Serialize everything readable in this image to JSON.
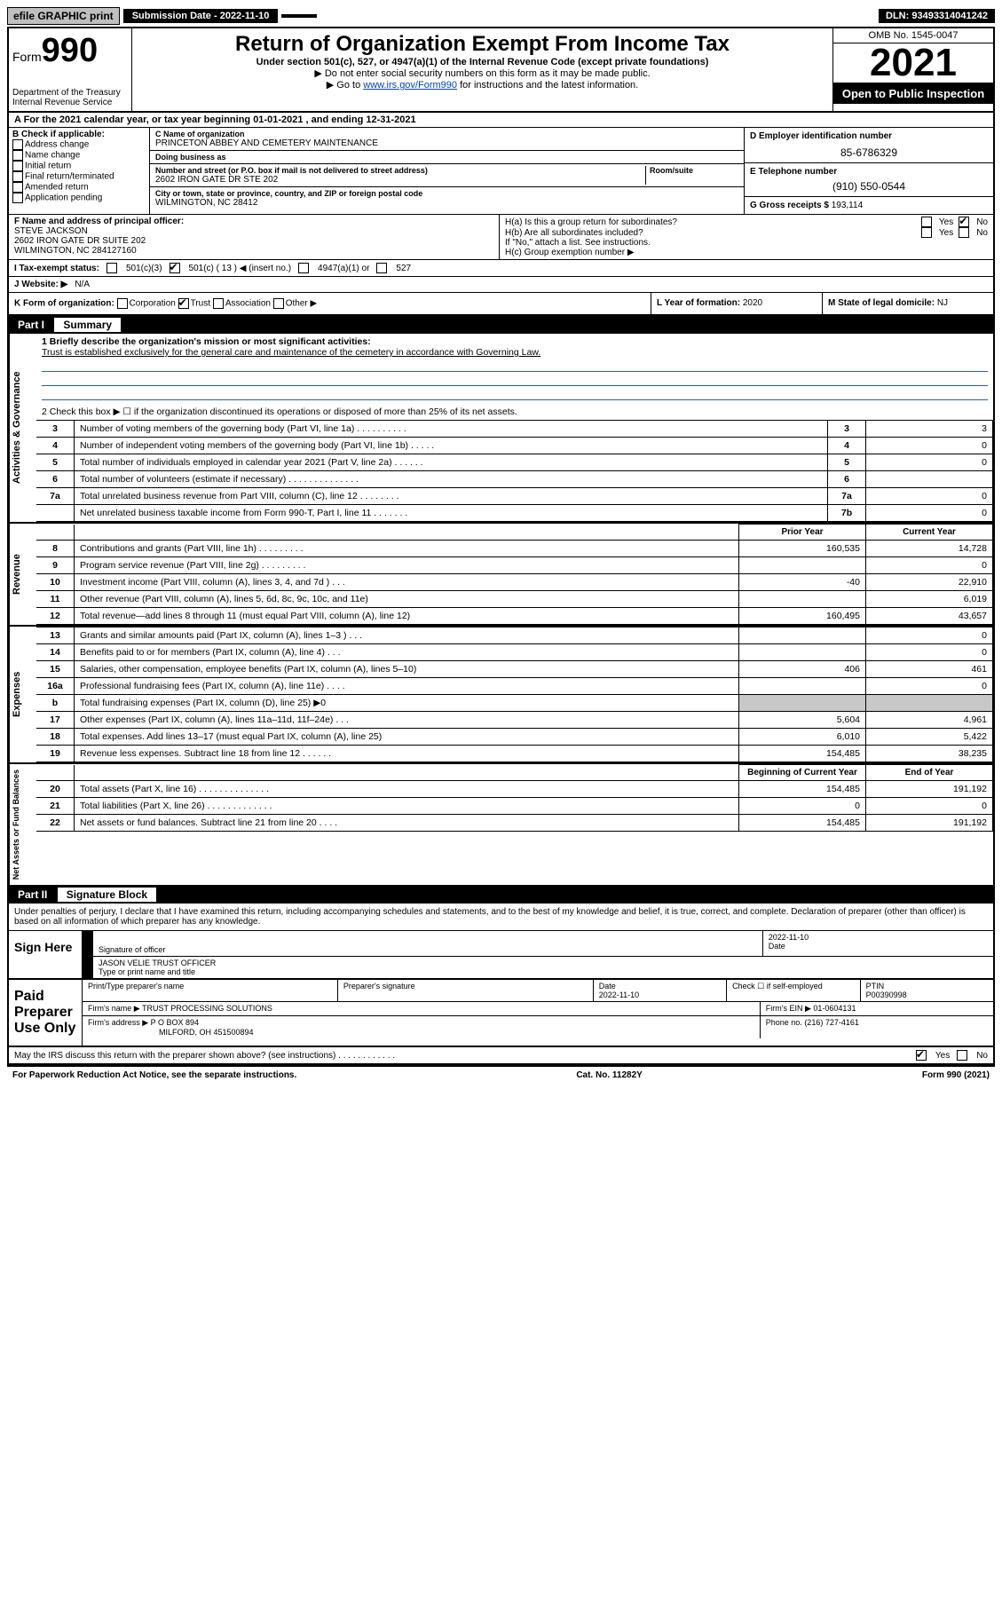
{
  "topbar": {
    "efile": "efile GRAPHIC print",
    "submission_label": "Submission Date - 2022-11-10",
    "dln": "DLN: 93493314041242"
  },
  "header": {
    "form_word": "Form",
    "form_num": "990",
    "title": "Return of Organization Exempt From Income Tax",
    "subtitle": "Under section 501(c), 527, or 4947(a)(1) of the Internal Revenue Code (except private foundations)",
    "instr1": "▶ Do not enter social security numbers on this form as it may be made public.",
    "instr2_pre": "▶ Go to ",
    "instr2_link": "www.irs.gov/Form990",
    "instr2_post": " for instructions and the latest information.",
    "dept": "Department of the Treasury",
    "irs": "Internal Revenue Service",
    "omb": "OMB No. 1545-0047",
    "year": "2021",
    "open": "Open to Public Inspection"
  },
  "rowA": "A For the 2021 calendar year, or tax year beginning 01-01-2021  , and ending 12-31-2021",
  "colB": {
    "label": "B Check if applicable:",
    "items": [
      "Address change",
      "Name change",
      "Initial return",
      "Final return/terminated",
      "Amended return",
      "Application pending"
    ]
  },
  "colC": {
    "name_label": "C Name of organization",
    "name": "PRINCETON ABBEY AND CEMETERY MAINTENANCE",
    "dba_label": "Doing business as",
    "dba": "",
    "street_label": "Number and street (or P.O. box if mail is not delivered to street address)",
    "room_label": "Room/suite",
    "street": "2602 IRON GATE DR STE 202",
    "city_label": "City or town, state or province, country, and ZIP or foreign postal code",
    "city": "WILMINGTON, NC  28412"
  },
  "colD": {
    "ein_label": "D Employer identification number",
    "ein": "85-6786329",
    "phone_label": "E Telephone number",
    "phone": "(910) 550-0544",
    "gross_label": "G Gross receipts $",
    "gross": "193,114"
  },
  "rowF": {
    "label": "F  Name and address of principal officer:",
    "name": "STEVE JACKSON",
    "addr1": "2602 IRON GATE DR SUITE 202",
    "addr2": "WILMINGTON, NC  284127160",
    "ha": "H(a)  Is this a group return for subordinates?",
    "ha_yes": "Yes",
    "ha_no": "No",
    "hb": "H(b)  Are all subordinates included?",
    "hb_yes": "Yes",
    "hb_no": "No",
    "hb_note": "If \"No,\" attach a list. See instructions.",
    "hc": "H(c)  Group exemption number ▶"
  },
  "rowI": {
    "label": "I   Tax-exempt status:",
    "opts": [
      "501(c)(3)",
      "501(c) ( 13 ) ◀ (insert no.)",
      "4947(a)(1) or",
      "527"
    ]
  },
  "rowJ": {
    "label": "J   Website: ▶",
    "val": "N/A"
  },
  "rowK": {
    "label": "K Form of organization:",
    "opts": [
      "Corporation",
      "Trust",
      "Association",
      "Other ▶"
    ],
    "l_label": "L Year of formation:",
    "l_val": "2020",
    "m_label": "M State of legal domicile:",
    "m_val": "NJ"
  },
  "part1": {
    "header": "Part I",
    "title": "Summary",
    "q1": "1   Briefly describe the organization's mission or most significant activities:",
    "mission": "Trust is established exclusively for the general care and maintenance of the cemetery in accordance with Governing Law.",
    "q2": "2   Check this box ▶ ☐ if the organization discontinued its operations or disposed of more than 25% of its net assets.",
    "rows_gov": [
      {
        "n": "3",
        "d": "Number of voting members of the governing body (Part VI, line 1a)  .   .   .   .   .   .   .   .   .   .",
        "k": "3",
        "v": "3"
      },
      {
        "n": "4",
        "d": "Number of independent voting members of the governing body (Part VI, line 1b)  .   .   .   .   .",
        "k": "4",
        "v": "0"
      },
      {
        "n": "5",
        "d": "Total number of individuals employed in calendar year 2021 (Part V, line 2a)  .   .   .   .   .   .",
        "k": "5",
        "v": "0"
      },
      {
        "n": "6",
        "d": "Total number of volunteers (estimate if necessary)  .   .   .   .   .   .   .   .   .   .   .   .   .   .",
        "k": "6",
        "v": ""
      },
      {
        "n": "7a",
        "d": "Total unrelated business revenue from Part VIII, column (C), line 12  .   .   .   .   .   .   .   .",
        "k": "7a",
        "v": "0"
      },
      {
        "n": "",
        "d": "Net unrelated business taxable income from Form 990-T, Part I, line 11  .   .   .   .   .   .   .",
        "k": "7b",
        "v": "0"
      }
    ],
    "col_prior": "Prior Year",
    "col_curr": "Current Year",
    "rows_rev": [
      {
        "n": "8",
        "d": "Contributions and grants (Part VIII, line 1h)  .   .   .   .   .   .   .   .   .",
        "p": "160,535",
        "c": "14,728"
      },
      {
        "n": "9",
        "d": "Program service revenue (Part VIII, line 2g)  .   .   .   .   .   .   .   .   .",
        "p": "",
        "c": "0"
      },
      {
        "n": "10",
        "d": "Investment income (Part VIII, column (A), lines 3, 4, and 7d )  .   .   .",
        "p": "-40",
        "c": "22,910"
      },
      {
        "n": "11",
        "d": "Other revenue (Part VIII, column (A), lines 5, 6d, 8c, 9c, 10c, and 11e)",
        "p": "",
        "c": "6,019"
      },
      {
        "n": "12",
        "d": "Total revenue—add lines 8 through 11 (must equal Part VIII, column (A), line 12)",
        "p": "160,495",
        "c": "43,657"
      }
    ],
    "rows_exp": [
      {
        "n": "13",
        "d": "Grants and similar amounts paid (Part IX, column (A), lines 1–3 )  .   .   .",
        "p": "",
        "c": "0"
      },
      {
        "n": "14",
        "d": "Benefits paid to or for members (Part IX, column (A), line 4)  .   .   .",
        "p": "",
        "c": "0"
      },
      {
        "n": "15",
        "d": "Salaries, other compensation, employee benefits (Part IX, column (A), lines 5–10)",
        "p": "406",
        "c": "461"
      },
      {
        "n": "16a",
        "d": "Professional fundraising fees (Part IX, column (A), line 11e)  .   .   .   .",
        "p": "",
        "c": "0"
      },
      {
        "n": "b",
        "d": "Total fundraising expenses (Part IX, column (D), line 25) ▶0",
        "p": "GRAY",
        "c": "GRAY"
      },
      {
        "n": "17",
        "d": "Other expenses (Part IX, column (A), lines 11a–11d, 11f–24e)  .   .   .",
        "p": "5,604",
        "c": "4,961"
      },
      {
        "n": "18",
        "d": "Total expenses. Add lines 13–17 (must equal Part IX, column (A), line 25)",
        "p": "6,010",
        "c": "5,422"
      },
      {
        "n": "19",
        "d": "Revenue less expenses. Subtract line 18 from line 12  .   .   .   .   .   .",
        "p": "154,485",
        "c": "38,235"
      }
    ],
    "col_beg": "Beginning of Current Year",
    "col_end": "End of Year",
    "rows_net": [
      {
        "n": "20",
        "d": "Total assets (Part X, line 16)  .   .   .   .   .   .   .   .   .   .   .   .   .   .",
        "p": "154,485",
        "c": "191,192"
      },
      {
        "n": "21",
        "d": "Total liabilities (Part X, line 26)  .   .   .   .   .   .   .   .   .   .   .   .   .",
        "p": "0",
        "c": "0"
      },
      {
        "n": "22",
        "d": "Net assets or fund balances. Subtract line 21 from line 20  .   .   .   .",
        "p": "154,485",
        "c": "191,192"
      }
    ]
  },
  "part2": {
    "header": "Part II",
    "title": "Signature Block",
    "decl": "Under penalties of perjury, I declare that I have examined this return, including accompanying schedules and statements, and to the best of my knowledge and belief, it is true, correct, and complete. Declaration of preparer (other than officer) is based on all information of which preparer has any knowledge."
  },
  "sign": {
    "here": "Sign Here",
    "sig_officer": "Signature of officer",
    "date": "Date",
    "date_val": "2022-11-10",
    "name": "JASON VELIE TRUST OFFICER",
    "name_label": "Type or print name and title"
  },
  "paid": {
    "label": "Paid Preparer Use Only",
    "c1": "Print/Type preparer's name",
    "c2": "Preparer's signature",
    "c3": "Date",
    "c3v": "2022-11-10",
    "c4": "Check ☐ if self-employed",
    "c5": "PTIN",
    "c5v": "P00390998",
    "firm_label": "Firm's name   ▶",
    "firm": "TRUST PROCESSING SOLUTIONS",
    "ein_label": "Firm's EIN ▶",
    "ein": "01-0604131",
    "addr_label": "Firm's address ▶",
    "addr1": "P O BOX 894",
    "addr2": "MILFORD, OH  451500894",
    "phone_label": "Phone no.",
    "phone": "(216) 727-4161"
  },
  "may_irs": "May the IRS discuss this return with the preparer shown above? (see instructions)  .   .   .   .   .   .   .   .   .   .   .   .",
  "may_yes": "Yes",
  "may_no": "No",
  "footer": {
    "left": "For Paperwork Reduction Act Notice, see the separate instructions.",
    "mid": "Cat. No. 11282Y",
    "right": "Form 990 (2021)"
  },
  "colors": {
    "black": "#000000",
    "gray": "#c8c8c8",
    "link": "#0645ad",
    "line_blue": "#2b5cad"
  }
}
